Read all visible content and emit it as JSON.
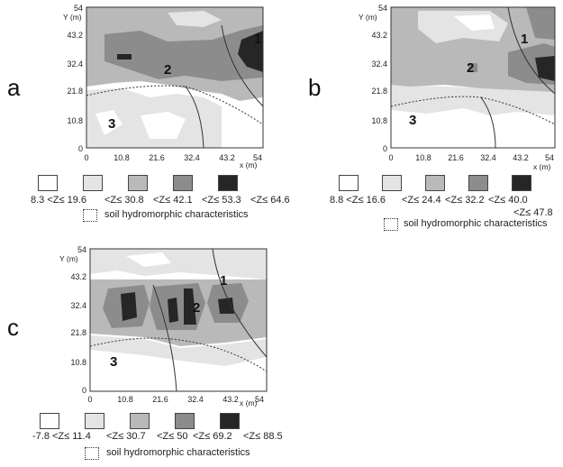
{
  "panels": [
    {
      "letter": "a",
      "axis": {
        "y_title": "Y (m)",
        "x_title": "x (m)",
        "y_ticks": [
          "0",
          "10.8",
          "21.8",
          "32.4",
          "43.2",
          "54"
        ],
        "x_ticks": [
          "0",
          "10.8",
          "21.6",
          "32.4",
          "43.2",
          "54"
        ]
      },
      "zones": [
        "1",
        "2",
        "3"
      ],
      "legend": {
        "ranges": [
          "8.3 <Z≤ 19.6",
          "<Z≤ 30.8",
          "<Z≤ 42.1",
          "<Z≤ 53.3",
          "<Z≤ 64.6"
        ],
        "soil_label": "soil hydromorphic characteristics"
      }
    },
    {
      "letter": "b",
      "axis": {
        "y_title": "Y (m)",
        "x_title": "x (m)",
        "y_ticks": [
          "0",
          "10.8",
          "21.8",
          "32.4",
          "43.2",
          "54"
        ],
        "x_ticks": [
          "0",
          "10.8",
          "21.6",
          "32.4",
          "43.2",
          "54"
        ]
      },
      "zones": [
        "1",
        "2",
        "3"
      ],
      "legend": {
        "ranges": [
          "8.8 <Z≤ 16.6",
          "<Z≤ 24.4",
          "<Z≤ 32.2",
          "<Z≤ 40.0",
          "<Z≤ 47.8"
        ],
        "soil_label": "soil hydromorphic characteristics"
      }
    },
    {
      "letter": "c",
      "axis": {
        "y_title": "Y (m)",
        "x_title": "x (m)",
        "y_ticks": [
          "0",
          "10.8",
          "21.8",
          "32.4",
          "43.2",
          "54"
        ],
        "x_ticks": [
          "0",
          "10.8",
          "21.6",
          "32.4",
          "43.2",
          "54"
        ]
      },
      "zones": [
        "1",
        "2",
        "3"
      ],
      "legend": {
        "ranges": [
          "-7.8 <Z≤ 11.4",
          "<Z≤ 30.7",
          "<Z≤ 50",
          "<Z≤ 69.2",
          "<Z≤ 88.5"
        ],
        "soil_label": "soil hydromorphic characteristics"
      }
    }
  ],
  "colors": {
    "class0": "#ffffff",
    "class1": "#e4e4e4",
    "class2": "#b9b9b9",
    "class3": "#8c8c8c",
    "class4": "#262626"
  }
}
